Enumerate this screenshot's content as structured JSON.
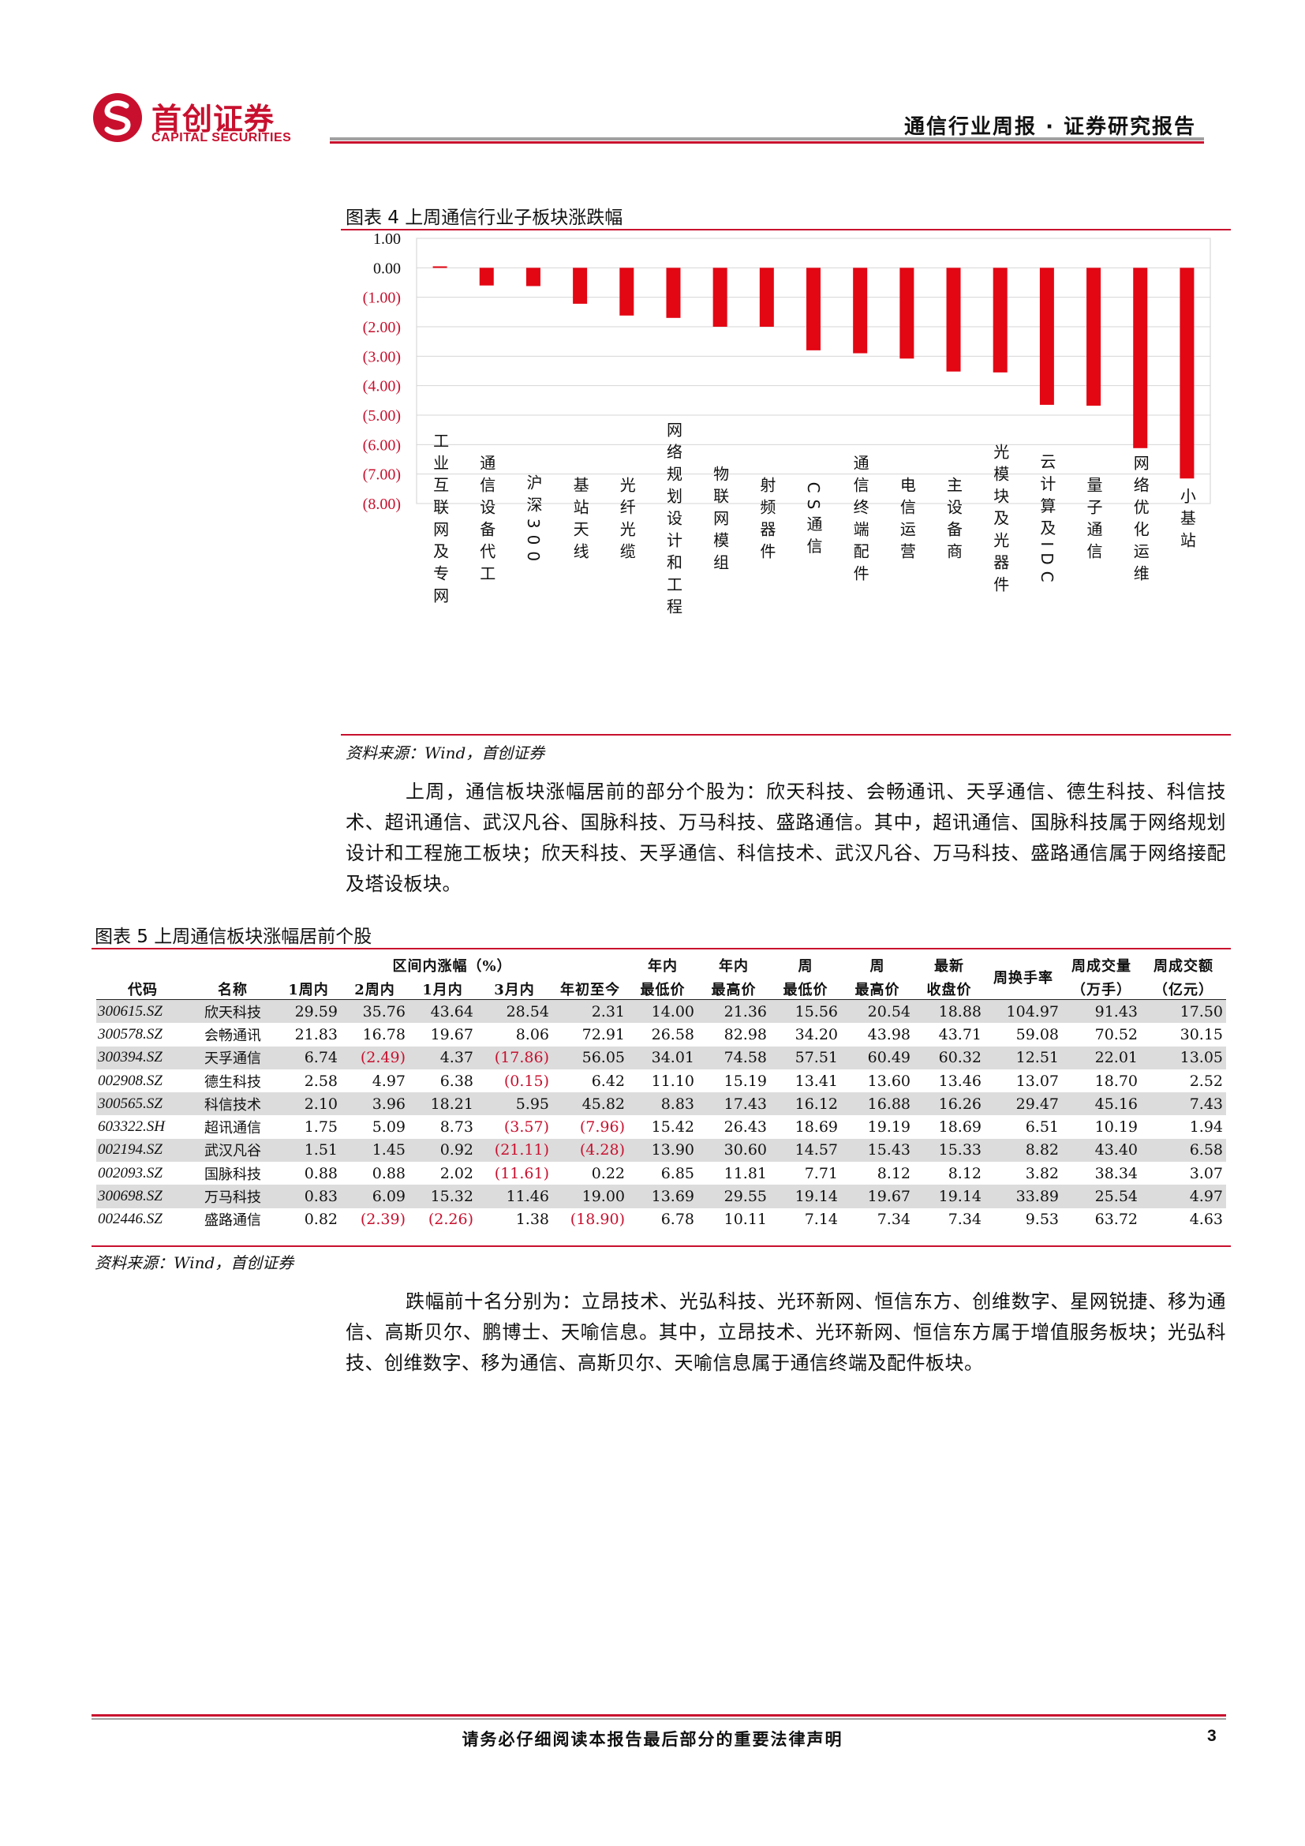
{
  "header": {
    "logo_cn": "首创证券",
    "logo_en": "CAPITAL SECURITIES",
    "report_title": "通信行业周报 · 证券研究报告",
    "brand_color": "#c8102e"
  },
  "figure4": {
    "title": "图表 4 上周通信行业子板块涨跌幅",
    "source": "资料来源：Wind，首创证券",
    "chart_data": {
      "type": "bar",
      "categories": [
        "工业互联网及专网",
        "通信设备代工",
        "沪深300",
        "基站天线",
        "光纤光缆",
        "网络规划设计和工程",
        "物联网模组",
        "射频器件",
        "CS通信",
        "通信终端配件",
        "电信运营",
        "主设备商",
        "光模块及光器件",
        "云计算及IDC",
        "量子通信",
        "网络优化运维",
        "小基站"
      ],
      "values": [
        0.05,
        -0.6,
        -0.62,
        -1.22,
        -1.62,
        -1.7,
        -2.0,
        -2.0,
        -2.8,
        -2.9,
        -3.08,
        -3.52,
        -3.55,
        -4.65,
        -4.68,
        -6.12,
        -7.15
      ],
      "tick_labels": [
        "1.00",
        "0.00",
        "(1.00)",
        "(2.00)",
        "(3.00)",
        "(4.00)",
        "(5.00)",
        "(6.00)",
        "(7.00)",
        "(8.00)"
      ],
      "ylim": [
        -8,
        1
      ],
      "bar_color": "#e30613",
      "grid": true,
      "xlabel": "",
      "ylabel": ""
    }
  },
  "paragraph1": "上周，通信板块涨幅居前的部分个股为：欣天科技、会畅通讯、天孚通信、德生科技、科信技术、超讯通信、武汉凡谷、国脉科技、万马科技、盛路通信。其中，超讯通信、国脉科技属于网络规划设计和工程施工板块；欣天科技、天孚通信、科信技术、武汉凡谷、万马科技、盛路通信属于网络接配及塔设板块。",
  "figure5": {
    "title": "图表 5 上周通信板块涨幅居前个股",
    "source": "资料来源：Wind，首创证券",
    "group_header": "区间内涨幅（%）",
    "columns": [
      "代码",
      "名称",
      "1周内",
      "2周内",
      "1月内",
      "3月内",
      "年初至今",
      "年内最低价",
      "年内最高价",
      "周最低价",
      "周最高价",
      "最新收盘价",
      "周换手率",
      "周成交量（万手）",
      "周成交额（亿元）"
    ],
    "col_top": [
      "",
      "",
      "",
      "",
      "",
      "",
      "",
      "年内",
      "年内",
      "周",
      "周",
      "最新",
      "",
      "周成交量",
      "周成交额"
    ],
    "col_bottom": [
      "代码",
      "名称",
      "1周内",
      "2周内",
      "1月内",
      "3月内",
      "年初至今",
      "最低价",
      "最高价",
      "最低价",
      "最高价",
      "收盘价",
      "周换手率",
      "（万手）",
      "（亿元）"
    ],
    "rows": [
      [
        "300615.SZ",
        "欣天科技",
        "29.59",
        "35.76",
        "43.64",
        "28.54",
        "2.31",
        "14.00",
        "21.36",
        "15.56",
        "20.54",
        "18.88",
        "104.97",
        "91.43",
        "17.50"
      ],
      [
        "300578.SZ",
        "会畅通讯",
        "21.83",
        "16.78",
        "19.67",
        "8.06",
        "72.91",
        "26.58",
        "82.98",
        "34.20",
        "43.98",
        "43.71",
        "59.08",
        "70.52",
        "30.15"
      ],
      [
        "300394.SZ",
        "天孚通信",
        "6.74",
        "(2.49)",
        "4.37",
        "(17.86)",
        "56.05",
        "34.01",
        "74.58",
        "57.51",
        "60.49",
        "60.32",
        "12.51",
        "22.01",
        "13.05"
      ],
      [
        "002908.SZ",
        "德生科技",
        "2.58",
        "4.97",
        "6.38",
        "(0.15)",
        "6.42",
        "11.10",
        "15.19",
        "13.41",
        "13.60",
        "13.46",
        "13.07",
        "18.70",
        "2.52"
      ],
      [
        "300565.SZ",
        "科信技术",
        "2.10",
        "3.96",
        "18.21",
        "5.95",
        "45.82",
        "8.83",
        "17.43",
        "16.12",
        "16.88",
        "16.26",
        "29.47",
        "45.16",
        "7.43"
      ],
      [
        "603322.SH",
        "超讯通信",
        "1.75",
        "5.09",
        "8.73",
        "(3.57)",
        "(7.96)",
        "15.42",
        "26.43",
        "18.69",
        "19.19",
        "18.69",
        "6.51",
        "10.19",
        "1.94"
      ],
      [
        "002194.SZ",
        "武汉凡谷",
        "1.51",
        "1.45",
        "0.92",
        "(21.11)",
        "(4.28)",
        "13.90",
        "30.60",
        "14.57",
        "15.43",
        "15.33",
        "8.82",
        "43.40",
        "6.58"
      ],
      [
        "002093.SZ",
        "国脉科技",
        "0.88",
        "0.88",
        "2.02",
        "(11.61)",
        "0.22",
        "6.85",
        "11.81",
        "7.71",
        "8.12",
        "8.12",
        "3.82",
        "38.34",
        "3.07"
      ],
      [
        "300698.SZ",
        "万马科技",
        "0.83",
        "6.09",
        "15.32",
        "11.46",
        "19.00",
        "13.69",
        "29.55",
        "19.14",
        "19.67",
        "19.14",
        "33.89",
        "25.54",
        "4.97"
      ],
      [
        "002446.SZ",
        "盛路通信",
        "0.82",
        "(2.39)",
        "(2.26)",
        "1.38",
        "(18.90)",
        "6.78",
        "10.11",
        "7.14",
        "7.34",
        "7.34",
        "9.53",
        "63.72",
        "4.63"
      ]
    ]
  },
  "paragraph2": "跌幅前十名分别为：立昂技术、光弘科技、光环新网、恒信东方、创维数字、星网锐捷、移为通信、高斯贝尔、鹏博士、天喻信息。其中，立昂技术、光环新网、恒信东方属于增值服务板块；光弘科技、创维数字、移为通信、高斯贝尔、天喻信息属于通信终端及配件板块。",
  "footer": {
    "disclaimer": "请务必仔细阅读本报告最后部分的重要法律声明",
    "page_number": "3"
  }
}
